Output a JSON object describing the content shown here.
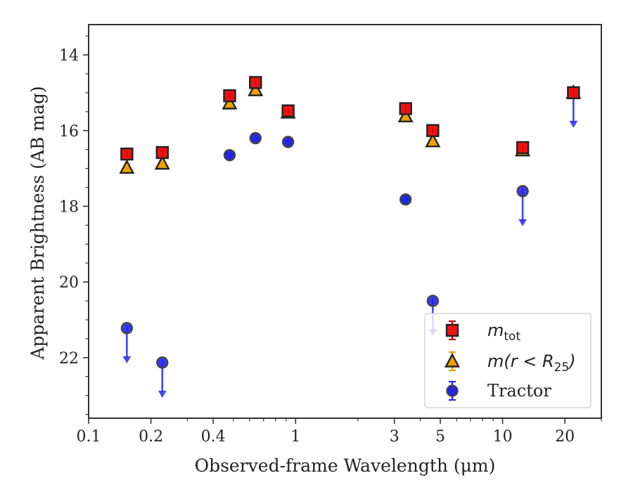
{
  "chart_data": {
    "type": "scatter",
    "xlabel": "Observed-frame Wavelength (μm)",
    "ylabel": "Apparent Brightness (AB mag)",
    "xscale": "log",
    "xlim": [
      0.1,
      30
    ],
    "ylim": [
      23.6,
      13.2
    ],
    "y_inverted": true,
    "xticks": [
      {
        "value": 0.1,
        "label": "0.1"
      },
      {
        "value": 0.2,
        "label": "0.2"
      },
      {
        "value": 0.4,
        "label": "0.4"
      },
      {
        "value": 1,
        "label": "1"
      },
      {
        "value": 3,
        "label": "3"
      },
      {
        "value": 5,
        "label": "5"
      },
      {
        "value": 10,
        "label": "10"
      },
      {
        "value": 20,
        "label": "20"
      }
    ],
    "yticks": [
      {
        "value": 14,
        "label": "14"
      },
      {
        "value": 16,
        "label": "16"
      },
      {
        "value": 18,
        "label": "18"
      },
      {
        "value": 20,
        "label": "20"
      },
      {
        "value": 22,
        "label": "22"
      }
    ],
    "grid": false,
    "legend_position": "lower-right",
    "series": [
      {
        "name": "m_tot",
        "legend_main": "m",
        "legend_sub": "tot",
        "marker": "square",
        "fill": "#ee1111",
        "errcolor": "#cc0000",
        "points": [
          {
            "x": 0.153,
            "y": 16.62
          },
          {
            "x": 0.227,
            "y": 16.58
          },
          {
            "x": 0.48,
            "y": 15.08
          },
          {
            "x": 0.64,
            "y": 14.73
          },
          {
            "x": 0.92,
            "y": 15.48
          },
          {
            "x": 3.4,
            "y": 15.42
          },
          {
            "x": 4.6,
            "y": 16.0
          },
          {
            "x": 12.5,
            "y": 16.45
          },
          {
            "x": 22.0,
            "y": 15.0
          }
        ]
      },
      {
        "name": "m(r<R25)",
        "legend_main": "m(r < R",
        "legend_sub": "25",
        "legend_close": ")",
        "marker": "triangle",
        "fill": "#f0a000",
        "errcolor": "#f0a000",
        "points": [
          {
            "x": 0.153,
            "y": 16.98
          },
          {
            "x": 0.227,
            "y": 16.87
          },
          {
            "x": 0.48,
            "y": 15.28
          },
          {
            "x": 0.64,
            "y": 14.93
          },
          {
            "x": 0.92,
            "y": 15.52
          },
          {
            "x": 3.4,
            "y": 15.62
          },
          {
            "x": 4.6,
            "y": 16.28
          },
          {
            "x": 12.5,
            "y": 16.52
          },
          {
            "x": 22.0,
            "y": 15.0
          }
        ]
      },
      {
        "name": "Tractor",
        "legend_main": "Tractor",
        "marker": "circle",
        "fill": "#2424f0",
        "errcolor": "#2424f0",
        "points": [
          {
            "x": 0.153,
            "y": 21.22,
            "upper_limit": true
          },
          {
            "x": 0.227,
            "y": 22.13,
            "upper_limit": true
          },
          {
            "x": 0.48,
            "y": 16.65
          },
          {
            "x": 0.64,
            "y": 16.2
          },
          {
            "x": 0.92,
            "y": 16.3
          },
          {
            "x": 3.4,
            "y": 17.82
          },
          {
            "x": 4.6,
            "y": 20.5,
            "upper_limit": true
          },
          {
            "x": 12.5,
            "y": 17.6,
            "upper_limit": true
          },
          {
            "x": 22.0,
            "y": 15.0,
            "upper_limit": true
          }
        ]
      }
    ]
  }
}
